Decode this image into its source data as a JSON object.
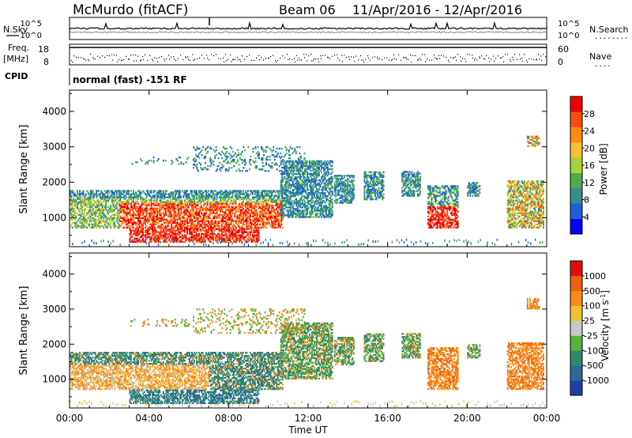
{
  "header": {
    "station": "McMurdo (fitACF)",
    "beam": "Beam 06",
    "date_range": "11/Apr/2016 - 12/Apr/2016",
    "cpid_text": "normal (fast) -151 RF"
  },
  "left_labels": {
    "nsky": "N.Sky",
    "freq": "Freq.",
    "freq_unit": "[MHz]",
    "cpid": "CPID"
  },
  "right_labels": {
    "nsearch": "N.Search",
    "nsearch_dots": "........",
    "nave": "Nave",
    "nave_dots": "...."
  },
  "noise_axis": {
    "top": "10^5",
    "bottom": "10^0"
  },
  "freq_axis": {
    "top": "18",
    "bottom": "8"
  },
  "nave_axis": {
    "top": "60",
    "bottom": "0"
  },
  "chart_data": [
    {
      "type": "heatmap",
      "name": "power",
      "xlabel": "Time UT",
      "ylabel": "Slant Range [km]",
      "x_ticks": [
        "00:00",
        "04:00",
        "08:00",
        "12:00",
        "16:00",
        "20:00",
        "00:00"
      ],
      "xlim_hours": [
        0,
        24
      ],
      "y_ticks": [
        1000,
        2000,
        3000,
        4000
      ],
      "ylim": [
        180,
        4600
      ],
      "colorbar_label": "Power [dB]",
      "colorbar_ticks": [
        4,
        8,
        12,
        16,
        20,
        24,
        28
      ],
      "colorbar_range": [
        0,
        32
      ],
      "colorbar_colors": [
        "#0000ff",
        "#1f5fd6",
        "#2f8f8f",
        "#4faa4a",
        "#a6d43a",
        "#f2c230",
        "#ff8a10",
        "#ff4a10",
        "#ee0000"
      ]
    },
    {
      "type": "heatmap",
      "name": "velocity",
      "xlabel": "Time UT",
      "ylabel": "Slant Range [km]",
      "x_ticks": [
        "00:00",
        "04:00",
        "08:00",
        "12:00",
        "16:00",
        "20:00",
        "00:00"
      ],
      "xlim_hours": [
        0,
        24
      ],
      "y_ticks": [
        1000,
        2000,
        3000,
        4000
      ],
      "ylim": [
        180,
        4600
      ],
      "colorbar_label": "Velocity [m s",
      "colorbar_label_sup": "-1",
      "colorbar_label_end": "]",
      "colorbar_ticks": [
        "1000",
        "500",
        "100",
        "25",
        "-25",
        "-100",
        "-500",
        "-1000"
      ],
      "colorbar_colors": [
        "#1e3fa8",
        "#2a6a9a",
        "#2f8a6a",
        "#55b53a",
        "#c8c8c8",
        "#f2c030",
        "#f88a18",
        "#f06010",
        "#e01010"
      ]
    }
  ]
}
